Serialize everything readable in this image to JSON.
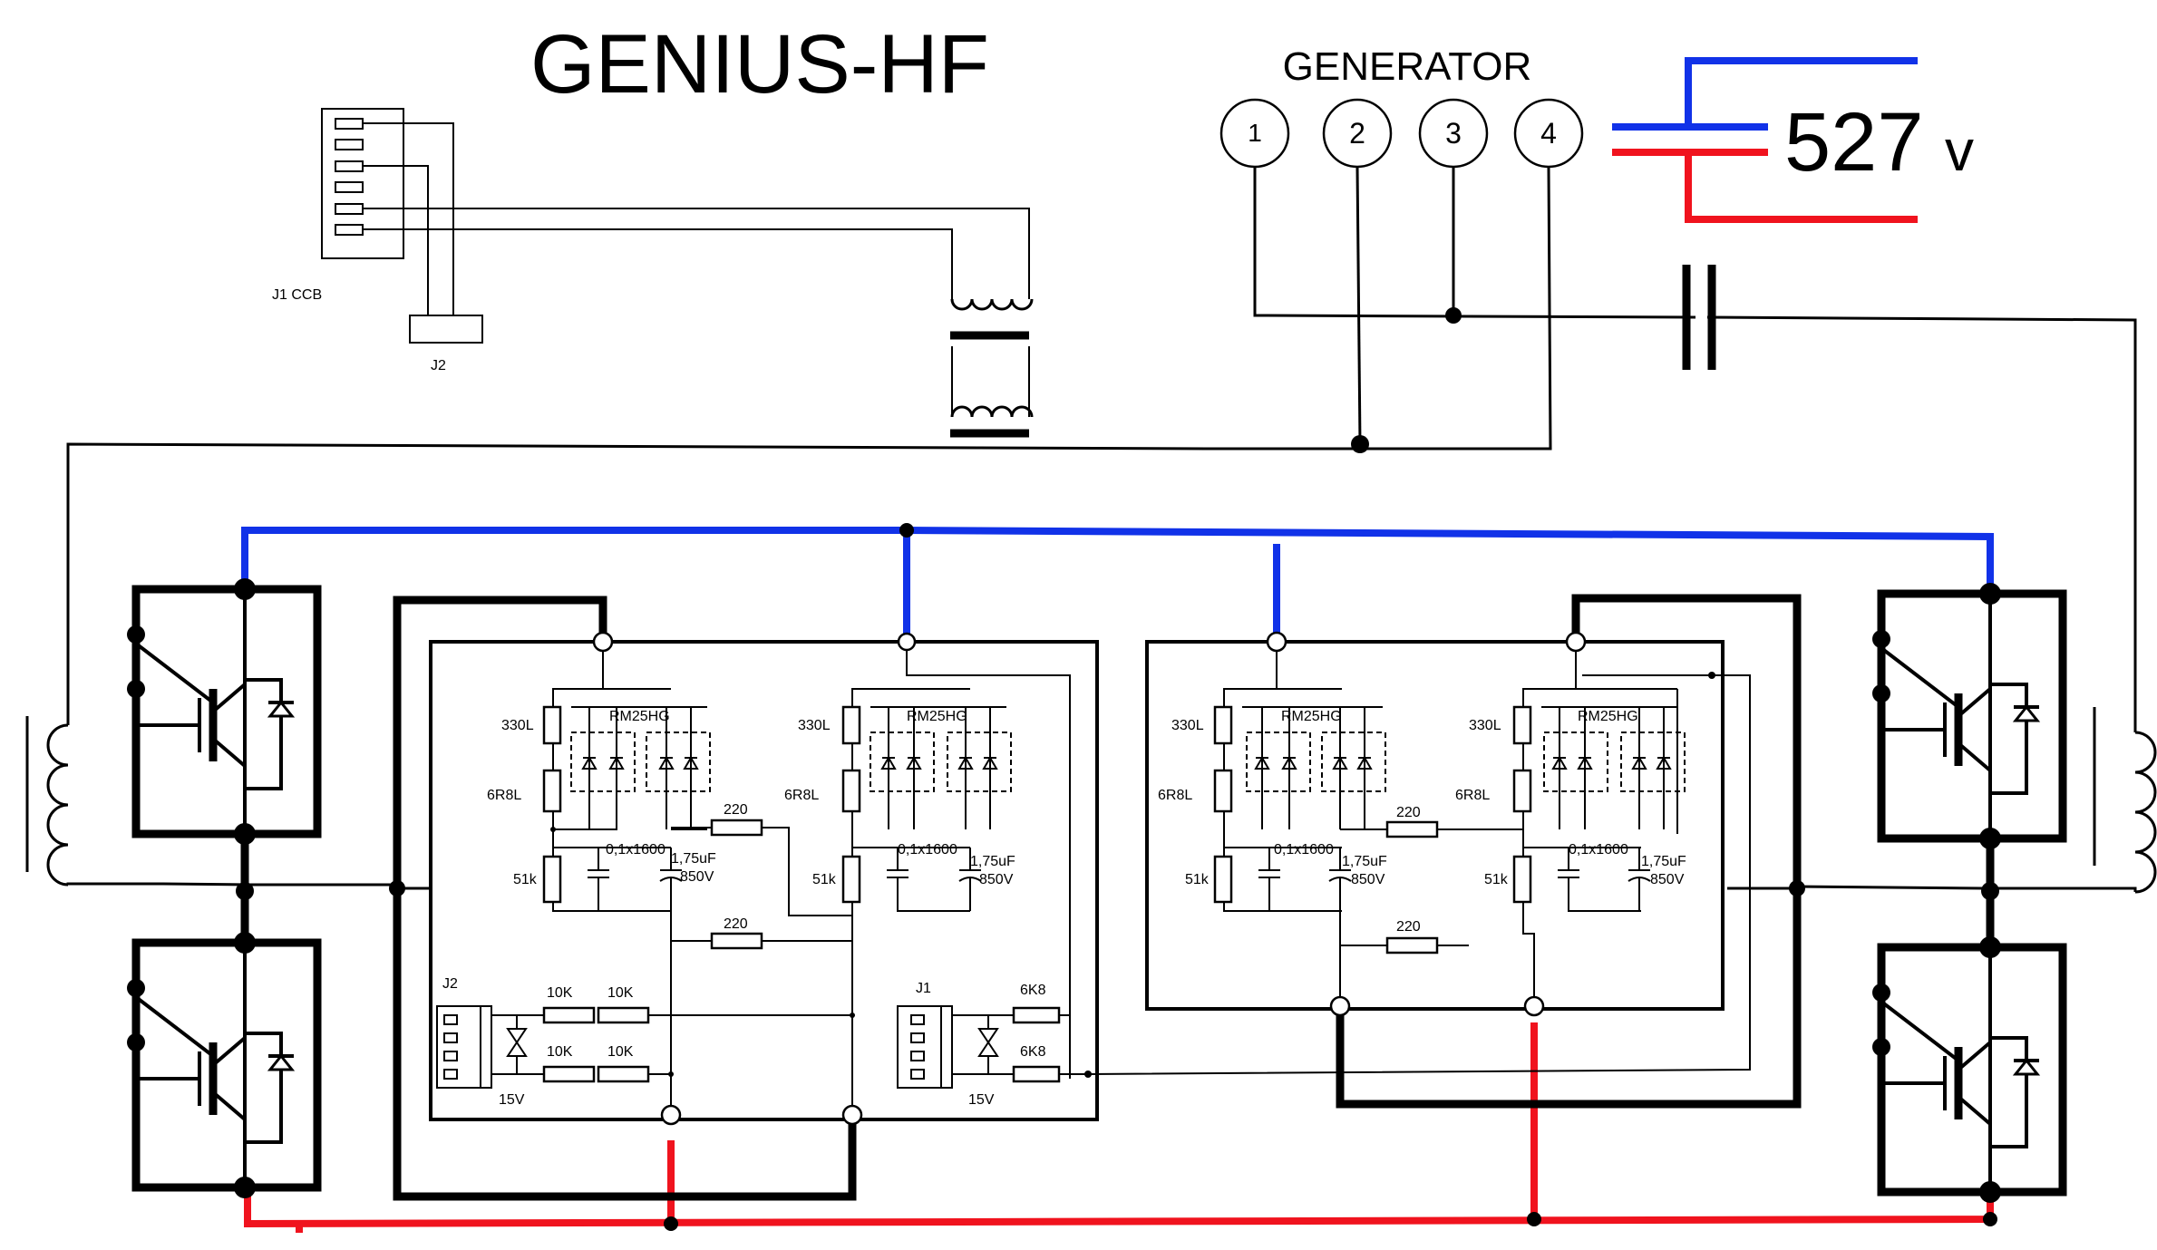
{
  "title": "GENIUS-HF",
  "generator": {
    "label": "GENERATOR",
    "terminals": [
      "1",
      "2",
      "3",
      "4"
    ]
  },
  "voltage": {
    "value": "527",
    "unit": "v"
  },
  "connectors": {
    "j1_ccb": "J1 CCB",
    "j2": "J2"
  },
  "boards": [
    {
      "relay_left": "RM25HG",
      "relay_right": "RM25HG",
      "r_top": "330L",
      "r_mid": "6R8L",
      "r_bot": "51k",
      "c_small": "0,1x1600",
      "c_big_value": "1,75uF",
      "c_big_voltage": "850V",
      "r_link_top": "220",
      "r_link_bot": "220",
      "r2_top": "330L",
      "r2_mid": "6R8L",
      "r2_bot": "51k",
      "c2_small": "0,1x1600",
      "c2_big_value": "1,75uF",
      "c2_big_voltage": "850V",
      "conn_left": "J2",
      "conn_right": "J1",
      "r_in": [
        "10K",
        "10K",
        "10K",
        "10K"
      ],
      "r_j1": [
        "6K8",
        "6K8"
      ],
      "zener_left": "15V",
      "zener_right": "15V"
    },
    {
      "relay_left": "RM25HG",
      "relay_right": "RM25HG",
      "r_top": "330L",
      "r_mid": "6R8L",
      "r_bot": "51k",
      "c_small": "0,1x1600",
      "c_big_value": "1,75uF",
      "c_big_voltage": "850V",
      "r_link_top": "220",
      "r_link_bot": "220",
      "r2_top": "330L",
      "r2_mid": "6R8L",
      "r2_bot": "51k",
      "c2_small": "0,1x1600",
      "c2_big_value": "1,75uF",
      "c2_big_voltage": "850V"
    }
  ]
}
